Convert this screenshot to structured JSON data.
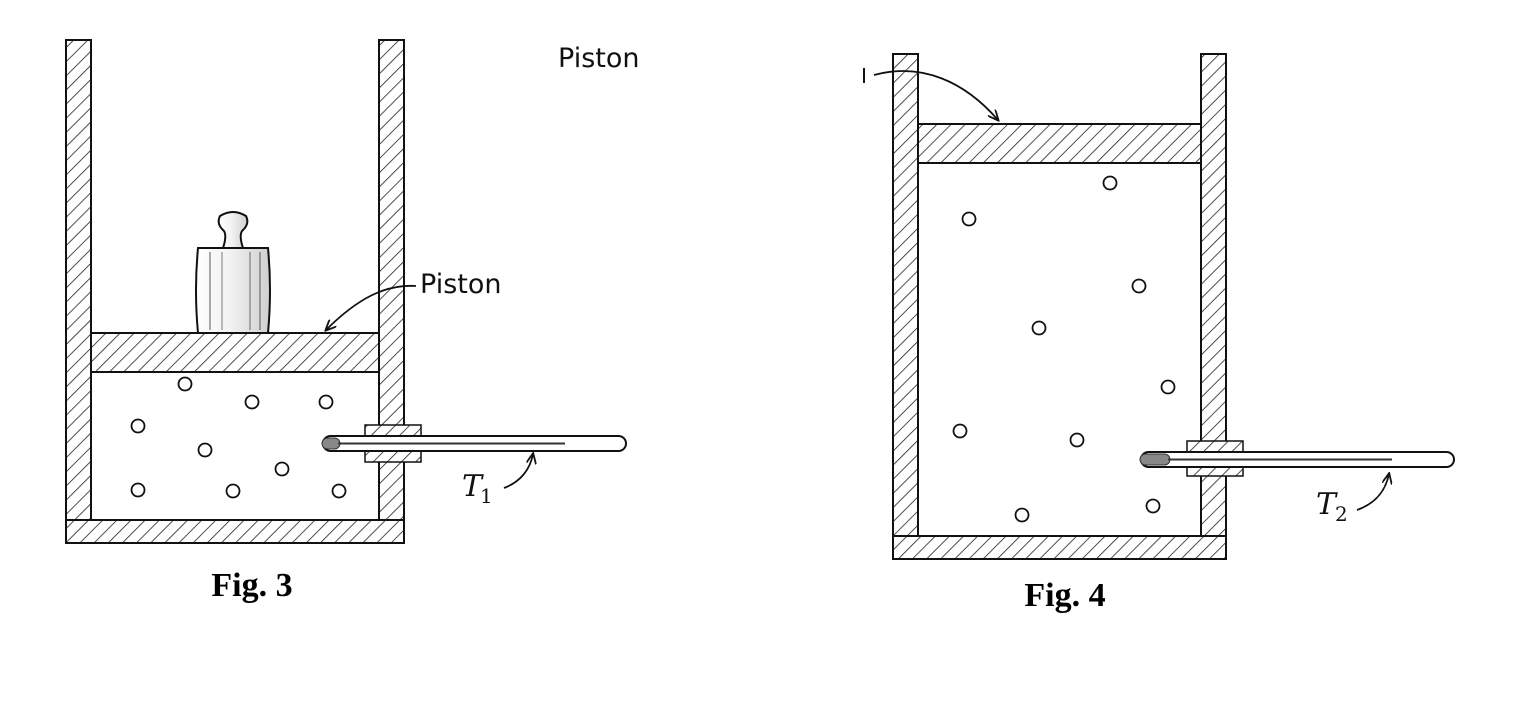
{
  "fig3": {
    "top_label": "Piston",
    "piston_label": "Piston",
    "thermometer_label": "T",
    "thermometer_sub": "1",
    "caption": "Fig. 3"
  },
  "fig4": {
    "thermometer_label": "T",
    "thermometer_sub": "2",
    "caption": "Fig. 4"
  }
}
